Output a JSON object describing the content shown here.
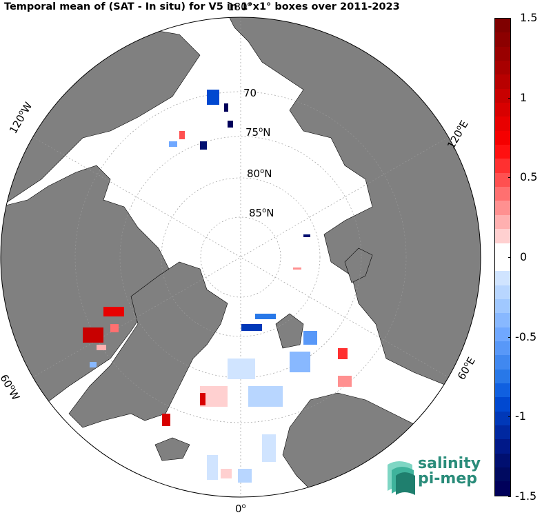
{
  "title": "Temporal mean of (SAT - In situ) for V5 in 1°x1° boxes over 2011-2023",
  "map": {
    "projection": "north-polar-stereographic",
    "lat_labels": [
      "70",
      "75",
      "80",
      "85"
    ],
    "lat_suffix": "N",
    "lon_labels": {
      "top": "180",
      "left_upper": "120",
      "right_upper": "120",
      "left_lower": "60",
      "right_lower": "60",
      "bottom": "0"
    },
    "lon_suffix_w": "W",
    "lon_suffix_e": "E",
    "land_color": "#808080",
    "ocean_color": "#ffffff"
  },
  "colorbar": {
    "min": -1.5,
    "max": 1.5,
    "ticks": [
      "1.5",
      "1",
      "0.5",
      "0",
      "-0.5",
      "-1",
      "-1.5"
    ],
    "colors_top_to_bottom": [
      "#7f0000",
      "#8c0000",
      "#990000",
      "#a80000",
      "#b80000",
      "#c80000",
      "#d80000",
      "#e80000",
      "#f50000",
      "#ff1010",
      "#ff3030",
      "#ff5050",
      "#ff7070",
      "#ff9090",
      "#ffb0b0",
      "#ffd0d0",
      "#ffffff",
      "#ffffff",
      "#d0e4ff",
      "#b8d6ff",
      "#a0c8ff",
      "#88b8ff",
      "#70a8ff",
      "#5898f8",
      "#4088f0",
      "#2878e8",
      "#1060e0",
      "#0048d0",
      "#0038b8",
      "#0028a0",
      "#001888",
      "#000f70",
      "#000a60",
      "#00005a"
    ]
  },
  "logo": {
    "line1": "salinity",
    "line2": "pi-mep"
  }
}
